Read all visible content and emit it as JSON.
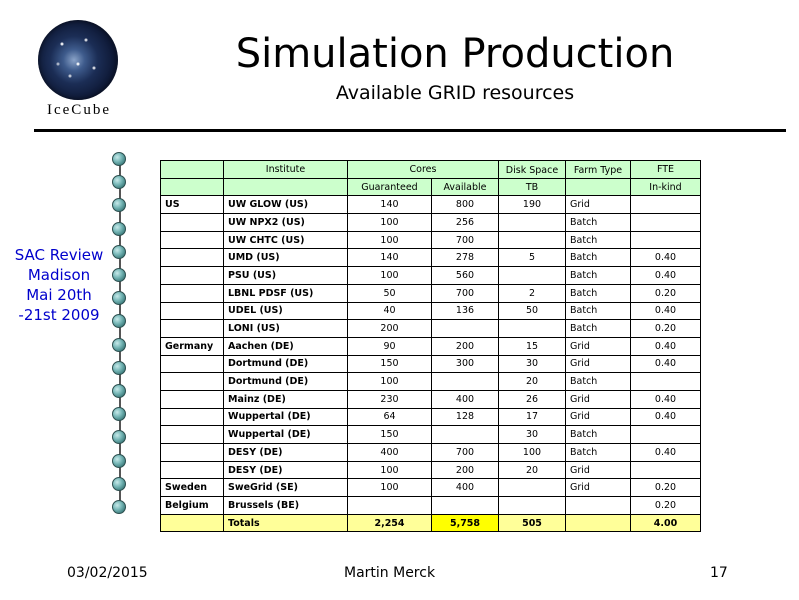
{
  "logo": {
    "text": "IceCube"
  },
  "header": {
    "title": "Simulation Production",
    "subtitle": "Available GRID resources"
  },
  "side": {
    "lines": [
      "SAC Review",
      "Madison",
      "Mai 20th",
      "-21st  2009"
    ]
  },
  "table": {
    "head": {
      "institute": "Institute",
      "cores": "Cores",
      "disk": "Disk Space",
      "farm": "Farm Type",
      "fte": "FTE",
      "guaranteed": "Guaranteed",
      "available": "Available",
      "tb": "TB",
      "inkind": "In-kind"
    },
    "rows": [
      {
        "country": "US",
        "institute": "UW GLOW (US)",
        "guaranteed": "140",
        "available": "800",
        "disk": "190",
        "farm": "Grid",
        "fte": ""
      },
      {
        "country": "",
        "institute": "UW NPX2 (US)",
        "guaranteed": "100",
        "available": "256",
        "disk": "",
        "farm": "Batch",
        "fte": ""
      },
      {
        "country": "",
        "institute": "UW CHTC (US)",
        "guaranteed": "100",
        "available": "700",
        "disk": "",
        "farm": "Batch",
        "fte": ""
      },
      {
        "country": "",
        "institute": "UMD (US)",
        "guaranteed": "140",
        "available": "278",
        "disk": "5",
        "farm": "Batch",
        "fte": "0.40"
      },
      {
        "country": "",
        "institute": "PSU (US)",
        "guaranteed": "100",
        "available": "560",
        "disk": "",
        "farm": "Batch",
        "fte": "0.40"
      },
      {
        "country": "",
        "institute": "LBNL PDSF (US)",
        "guaranteed": "50",
        "available": "700",
        "disk": "2",
        "farm": "Batch",
        "fte": "0.20"
      },
      {
        "country": "",
        "institute": "UDEL (US)",
        "guaranteed": "40",
        "available": "136",
        "disk": "50",
        "farm": "Batch",
        "fte": "0.40"
      },
      {
        "country": "",
        "institute": "LONI (US)",
        "guaranteed": "200",
        "available": "",
        "disk": "",
        "farm": "Batch",
        "fte": "0.20"
      },
      {
        "country": "Germany",
        "institute": "Aachen (DE)",
        "guaranteed": "90",
        "available": "200",
        "disk": "15",
        "farm": "Grid",
        "fte": "0.40"
      },
      {
        "country": "",
        "institute": "Dortmund (DE)",
        "guaranteed": "150",
        "available": "300",
        "disk": "30",
        "farm": "Grid",
        "fte": "0.40"
      },
      {
        "country": "",
        "institute": "Dortmund (DE)",
        "guaranteed": "100",
        "available": "",
        "disk": "20",
        "farm": "Batch",
        "fte": ""
      },
      {
        "country": "",
        "institute": "Mainz (DE)",
        "guaranteed": "230",
        "available": "400",
        "disk": "26",
        "farm": "Grid",
        "fte": "0.40"
      },
      {
        "country": "",
        "institute": "Wuppertal (DE)",
        "guaranteed": "64",
        "available": "128",
        "disk": "17",
        "farm": "Grid",
        "fte": "0.40"
      },
      {
        "country": "",
        "institute": "Wuppertal (DE)",
        "guaranteed": "150",
        "available": "",
        "disk": "30",
        "farm": "Batch",
        "fte": ""
      },
      {
        "country": "",
        "institute": "DESY (DE)",
        "guaranteed": "400",
        "available": "700",
        "disk": "100",
        "farm": "Batch",
        "fte": "0.40"
      },
      {
        "country": "",
        "institute": "DESY (DE)",
        "guaranteed": "100",
        "available": "200",
        "disk": "20",
        "farm": "Grid",
        "fte": ""
      },
      {
        "country": "Sweden",
        "institute": "SweGrid (SE)",
        "guaranteed": "100",
        "available": "400",
        "disk": "",
        "farm": "Grid",
        "fte": "0.20"
      },
      {
        "country": "Belgium",
        "institute": "Brussels (BE)",
        "guaranteed": "",
        "available": "",
        "disk": "",
        "farm": "",
        "fte": "0.20"
      }
    ],
    "totals": {
      "label": "Totals",
      "guaranteed": "2,254",
      "available": "5,758",
      "disk": "505",
      "farm": "",
      "fte": "4.00"
    }
  },
  "footer": {
    "date": "03/02/2015",
    "author": "Martin Merck",
    "page": "17"
  }
}
